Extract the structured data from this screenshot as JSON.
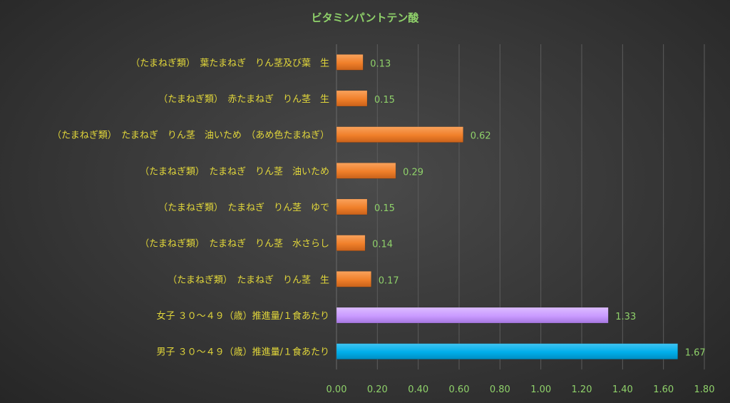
{
  "chart_data": {
    "type": "bar",
    "orientation": "horizontal",
    "title": "ビタミンパントテン酸",
    "categories": [
      "（たまねぎ類）　葉たまねぎ　りん茎及び葉　生",
      "（たまねぎ類）　赤たまねぎ　りん茎　生",
      "（たまねぎ類）　たまねぎ　りん茎　油いため　（あめ色たまねぎ）",
      "（たまねぎ類）　たまねぎ　りん茎　油いため",
      "（たまねぎ類）　たまねぎ　りん茎　ゆで",
      "（たまねぎ類）　たまねぎ　りん茎　水さらし",
      "（たまねぎ類）　たまねぎ　りん茎　生",
      "女子 ３０～４９（歳）推進量/１食あたり",
      "男子 ３０～４９（歳）推進量/１食あたり"
    ],
    "values": [
      0.13,
      0.15,
      0.62,
      0.29,
      0.15,
      0.14,
      0.17,
      1.33,
      1.67
    ],
    "value_labels": [
      "0.13",
      "0.15",
      "0.62",
      "0.29",
      "0.15",
      "0.14",
      "0.17",
      "1.33",
      "1.67"
    ],
    "bar_colors": [
      "#f07f2a",
      "#f07f2a",
      "#f07f2a",
      "#f07f2a",
      "#f07f2a",
      "#f07f2a",
      "#f07f2a",
      "#c99aff",
      "#00aeea"
    ],
    "xlim": [
      0,
      1.8
    ],
    "x_ticks": [
      "0.00",
      "0.20",
      "0.40",
      "0.60",
      "0.80",
      "1.00",
      "1.20",
      "1.40",
      "1.60",
      "1.80"
    ],
    "xlabel": "",
    "ylabel": "",
    "grid": "vertical",
    "legend": "none"
  }
}
